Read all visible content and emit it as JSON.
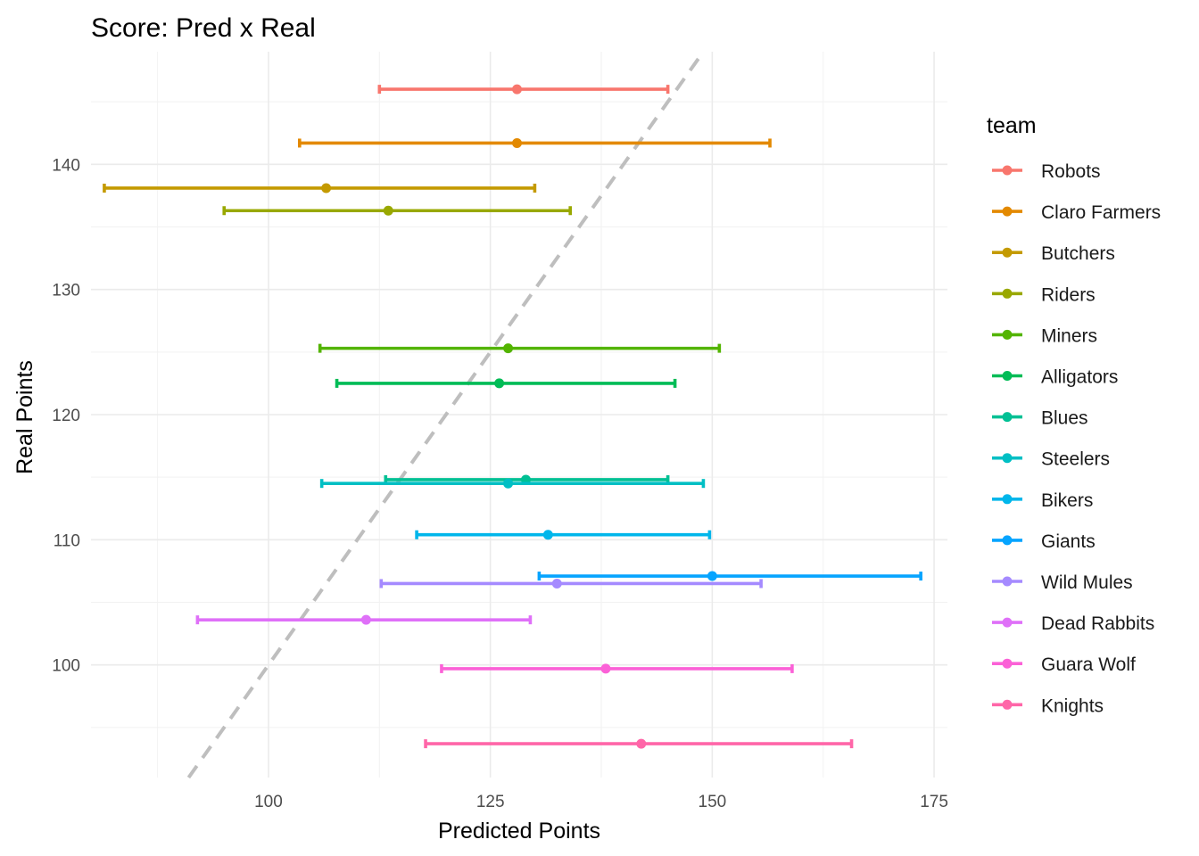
{
  "chart_data": {
    "type": "errorbar-scatter",
    "title": "Score: Pred x Real",
    "xlabel": "Predicted Points",
    "ylabel": "Real Points",
    "xlim": [
      80,
      176.5
    ],
    "ylim": [
      91,
      149
    ],
    "x_ticks": [
      100,
      125,
      150,
      175
    ],
    "y_ticks": [
      100,
      110,
      120,
      130,
      140
    ],
    "reference_line": {
      "style": "dashed",
      "color": "#bebebe",
      "slope": 1,
      "intercept": 0
    },
    "legend_title": "team",
    "legend_position": "right",
    "series": [
      {
        "name": "Robots",
        "color": "#F8766D",
        "pred": 128.0,
        "lower": 112.5,
        "upper": 145.0,
        "real": 146.0
      },
      {
        "name": "Claro Farmers",
        "color": "#E38900",
        "pred": 128.0,
        "lower": 103.5,
        "upper": 156.5,
        "real": 141.7
      },
      {
        "name": "Butchers",
        "color": "#C49A00",
        "pred": 106.5,
        "lower": 81.5,
        "upper": 130.0,
        "real": 138.1
      },
      {
        "name": "Riders",
        "color": "#99A800",
        "pred": 113.5,
        "lower": 95.0,
        "upper": 134.0,
        "real": 136.3
      },
      {
        "name": "Miners",
        "color": "#53B400",
        "pred": 127.0,
        "lower": 105.8,
        "upper": 150.8,
        "real": 125.3
      },
      {
        "name": "Alligators",
        "color": "#00BC56",
        "pred": 126.0,
        "lower": 107.7,
        "upper": 145.8,
        "real": 122.5
      },
      {
        "name": "Blues",
        "color": "#00C094",
        "pred": 129.0,
        "lower": 113.2,
        "upper": 145.0,
        "real": 114.8
      },
      {
        "name": "Steelers",
        "color": "#00BFC4",
        "pred": 127.0,
        "lower": 106.0,
        "upper": 149.0,
        "real": 114.5
      },
      {
        "name": "Bikers",
        "color": "#00B6EB",
        "pred": 131.5,
        "lower": 116.7,
        "upper": 149.7,
        "real": 110.4
      },
      {
        "name": "Giants",
        "color": "#06A4FF",
        "pred": 150.0,
        "lower": 130.5,
        "upper": 173.5,
        "real": 107.1
      },
      {
        "name": "Wild Mules",
        "color": "#A58AFF",
        "pred": 132.5,
        "lower": 112.7,
        "upper": 155.5,
        "real": 106.5
      },
      {
        "name": "Dead Rabbits",
        "color": "#DF70F8",
        "pred": 111.0,
        "lower": 92.0,
        "upper": 129.5,
        "real": 103.6
      },
      {
        "name": "Guara Wolf",
        "color": "#FB61D7",
        "pred": 138.0,
        "lower": 119.5,
        "upper": 159.0,
        "real": 99.7
      },
      {
        "name": "Knights",
        "color": "#FF66A8",
        "pred": 142.0,
        "lower": 117.7,
        "upper": 165.7,
        "real": 93.7
      }
    ]
  }
}
